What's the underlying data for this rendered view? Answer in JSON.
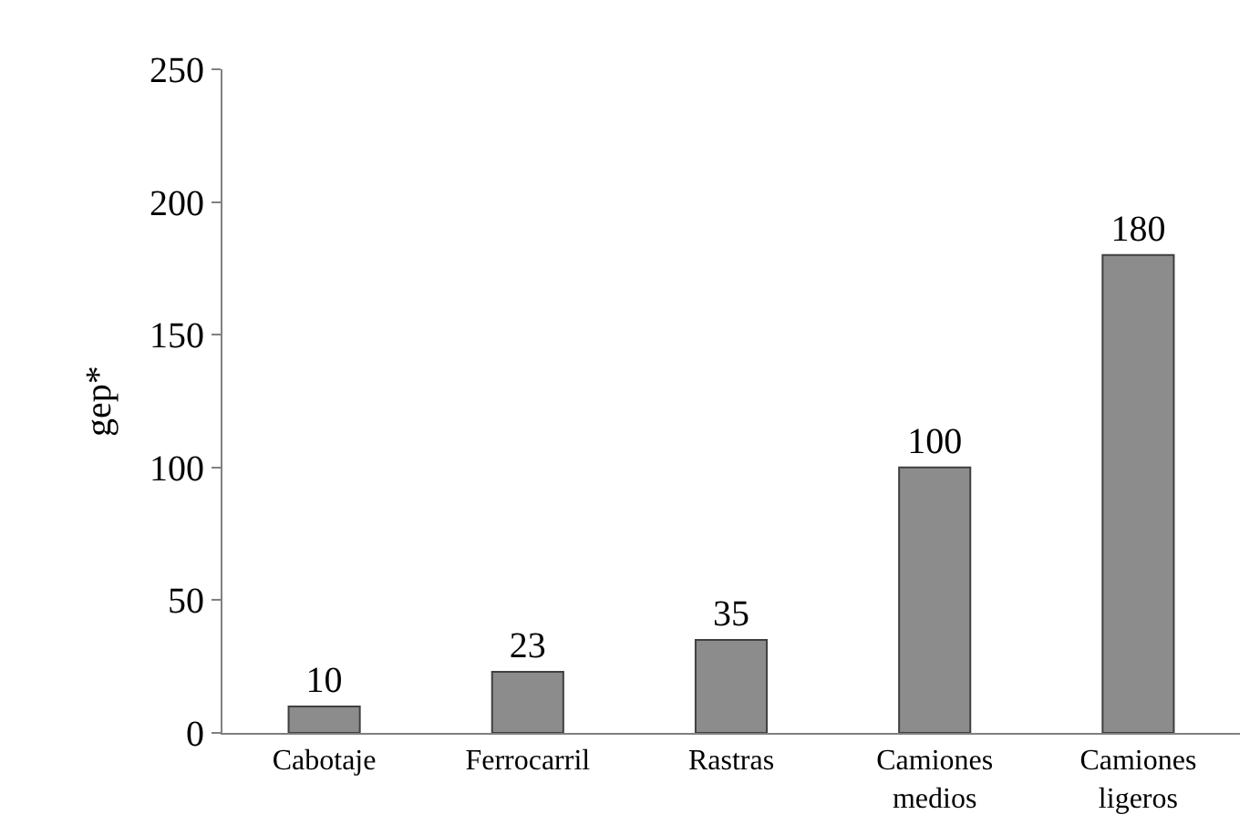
{
  "chart_data": {
    "type": "bar",
    "ylabel": "gep*",
    "categories": [
      "Cabotaje",
      "Ferrocarril",
      "Rastras",
      "Camiones medios",
      "Camiones ligeros"
    ],
    "values": [
      10,
      23,
      35,
      100,
      180
    ],
    "color": "#8c8c8c",
    "ylim": [
      0,
      250
    ],
    "yticks": [
      0,
      50,
      100,
      150,
      200,
      250
    ],
    "data_labels": true
  }
}
